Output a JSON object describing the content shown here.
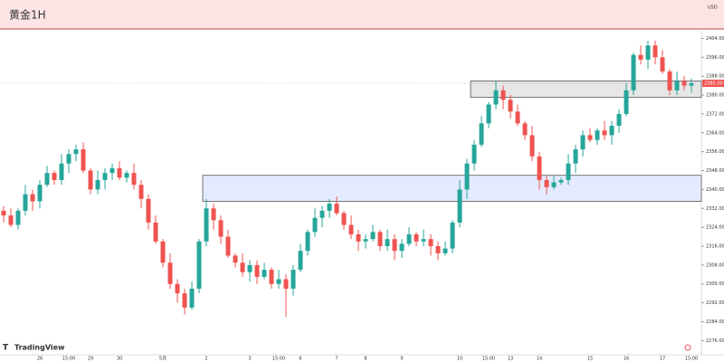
{
  "chart_data": {
    "type": "candlestick",
    "title": "黄金1H",
    "currency": "USD",
    "brand": "TradingView",
    "up_color": "#26a69a",
    "down_color": "#ef5350",
    "ylim": [
      2270,
      2408
    ],
    "yticks": [
      {
        "value": 2276,
        "label": "2276.00"
      },
      {
        "value": 2284,
        "label": "2284.00"
      },
      {
        "value": 2292,
        "label": "2292.00"
      },
      {
        "value": 2300,
        "label": "2300.00"
      },
      {
        "value": 2308,
        "label": "2308.00"
      },
      {
        "value": 2316,
        "label": "2316.00"
      },
      {
        "value": 2324,
        "label": "2324.00"
      },
      {
        "value": 2332,
        "label": "2332.00"
      },
      {
        "value": 2340,
        "label": "2340.00"
      },
      {
        "value": 2348,
        "label": "2348.00"
      },
      {
        "value": 2356,
        "label": "2356.00"
      },
      {
        "value": 2364,
        "label": "2364.00"
      },
      {
        "value": 2372,
        "label": "2372.00"
      },
      {
        "value": 2380,
        "label": "2380.00"
      },
      {
        "value": 2388,
        "label": "2388.00"
      },
      {
        "value": 2396,
        "label": "2396.00"
      },
      {
        "value": 2404,
        "label": "2404.00"
      }
    ],
    "last_price": {
      "value": 2385,
      "label": "2385.00"
    },
    "zones": [
      {
        "top": 2386,
        "bottom": 2379,
        "start": 65,
        "color": "#e0e0e0"
      },
      {
        "top": 2346,
        "bottom": 2335,
        "start": 28,
        "color": "#dde6ff"
      }
    ],
    "categories": [
      null,
      null,
      null,
      null,
      null,
      "26",
      null,
      null,
      null,
      "15:00",
      null,
      null,
      "29",
      null,
      null,
      null,
      "30",
      null,
      null,
      null,
      null,
      null,
      "5月",
      null,
      null,
      null,
      null,
      null,
      "2",
      null,
      null,
      null,
      null,
      null,
      "3",
      null,
      null,
      null,
      "15:00",
      null,
      null,
      "6",
      null,
      null,
      null,
      null,
      "7",
      null,
      null,
      null,
      "8",
      null,
      null,
      null,
      null,
      "9",
      null,
      null,
      null,
      null,
      null,
      null,
      null,
      "10",
      null,
      null,
      null,
      "15:00",
      null,
      null,
      "13",
      null,
      null,
      null,
      "14",
      null,
      null,
      null,
      null,
      null,
      null,
      "15",
      null,
      null,
      null,
      null,
      "16",
      null,
      null,
      null,
      null,
      "17",
      null,
      null,
      null,
      "15:00"
    ],
    "candles": [
      [
        2331,
        2333,
        2326,
        2329
      ],
      [
        2329,
        2332,
        2324,
        2325
      ],
      [
        2325,
        2332,
        2323,
        2331
      ],
      [
        2331,
        2342,
        2329,
        2338
      ],
      [
        2338,
        2340,
        2331,
        2335
      ],
      [
        2335,
        2344,
        2332,
        2342
      ],
      [
        2342,
        2350,
        2341,
        2347
      ],
      [
        2347,
        2348,
        2342,
        2344
      ],
      [
        2344,
        2355,
        2342,
        2351
      ],
      [
        2351,
        2357,
        2347,
        2355
      ],
      [
        2355,
        2359,
        2352,
        2357
      ],
      [
        2357,
        2360,
        2347,
        2348
      ],
      [
        2348,
        2349,
        2338,
        2340
      ],
      [
        2340,
        2348,
        2338,
        2344
      ],
      [
        2344,
        2349,
        2340,
        2347
      ],
      [
        2347,
        2351,
        2344,
        2349
      ],
      [
        2349,
        2352,
        2344,
        2345
      ],
      [
        2345,
        2348,
        2343,
        2347
      ],
      [
        2347,
        2351,
        2340,
        2342
      ],
      [
        2342,
        2344,
        2332,
        2336
      ],
      [
        2336,
        2338,
        2323,
        2326
      ],
      [
        2326,
        2329,
        2317,
        2318
      ],
      [
        2318,
        2319,
        2307,
        2309
      ],
      [
        2309,
        2313,
        2298,
        2300
      ],
      [
        2300,
        2302,
        2292,
        2296
      ],
      [
        2296,
        2298,
        2287,
        2290
      ],
      [
        2290,
        2301,
        2289,
        2298
      ],
      [
        2298,
        2319,
        2296,
        2318
      ],
      [
        2318,
        2336,
        2316,
        2332
      ],
      [
        2332,
        2334,
        2323,
        2327
      ],
      [
        2327,
        2329,
        2317,
        2320
      ],
      [
        2320,
        2323,
        2311,
        2312
      ],
      [
        2312,
        2313,
        2307,
        2309
      ],
      [
        2309,
        2313,
        2303,
        2305
      ],
      [
        2305,
        2310,
        2301,
        2308
      ],
      [
        2308,
        2310,
        2300,
        2303
      ],
      [
        2303,
        2309,
        2302,
        2306
      ],
      [
        2306,
        2307,
        2298,
        2300
      ],
      [
        2300,
        2306,
        2298,
        2302
      ],
      [
        2302,
        2304,
        2286,
        2298
      ],
      [
        2298,
        2308,
        2295,
        2306
      ],
      [
        2306,
        2317,
        2305,
        2314
      ],
      [
        2314,
        2323,
        2312,
        2322
      ],
      [
        2322,
        2332,
        2320,
        2328
      ],
      [
        2328,
        2333,
        2324,
        2331
      ],
      [
        2331,
        2336,
        2328,
        2334
      ],
      [
        2334,
        2337,
        2329,
        2330
      ],
      [
        2330,
        2331,
        2323,
        2325
      ],
      [
        2325,
        2329,
        2319,
        2321
      ],
      [
        2321,
        2323,
        2314,
        2318
      ],
      [
        2318,
        2321,
        2315,
        2319
      ],
      [
        2319,
        2325,
        2318,
        2322
      ],
      [
        2322,
        2323,
        2314,
        2316
      ],
      [
        2316,
        2323,
        2314,
        2319
      ],
      [
        2319,
        2321,
        2310,
        2314
      ],
      [
        2314,
        2319,
        2311,
        2317
      ],
      [
        2317,
        2324,
        2316,
        2321
      ],
      [
        2321,
        2322,
        2316,
        2318
      ],
      [
        2318,
        2323,
        2316,
        2319
      ],
      [
        2319,
        2321,
        2312,
        2316
      ],
      [
        2316,
        2318,
        2310,
        2313
      ],
      [
        2313,
        2318,
        2312,
        2315
      ],
      [
        2315,
        2327,
        2313,
        2326
      ],
      [
        2326,
        2344,
        2324,
        2340
      ],
      [
        2340,
        2353,
        2336,
        2351
      ],
      [
        2351,
        2361,
        2348,
        2359
      ],
      [
        2359,
        2371,
        2358,
        2368
      ],
      [
        2368,
        2377,
        2366,
        2376
      ],
      [
        2376,
        2386,
        2374,
        2382
      ],
      [
        2382,
        2384,
        2374,
        2378
      ],
      [
        2378,
        2380,
        2370,
        2373
      ],
      [
        2373,
        2376,
        2367,
        2368
      ],
      [
        2368,
        2369,
        2361,
        2363
      ],
      [
        2363,
        2367,
        2352,
        2354
      ],
      [
        2354,
        2356,
        2340,
        2344
      ],
      [
        2344,
        2346,
        2338,
        2341
      ],
      [
        2341,
        2346,
        2340,
        2343
      ],
      [
        2343,
        2345,
        2342,
        2344
      ],
      [
        2344,
        2355,
        2342,
        2351
      ],
      [
        2351,
        2359,
        2347,
        2357
      ],
      [
        2357,
        2365,
        2354,
        2363
      ],
      [
        2363,
        2366,
        2360,
        2361
      ],
      [
        2361,
        2366,
        2359,
        2365
      ],
      [
        2365,
        2369,
        2361,
        2363
      ],
      [
        2363,
        2369,
        2359,
        2367
      ],
      [
        2367,
        2374,
        2364,
        2372
      ],
      [
        2372,
        2385,
        2371,
        2382
      ],
      [
        2382,
        2398,
        2380,
        2397
      ],
      [
        2397,
        2401,
        2393,
        2395
      ],
      [
        2395,
        2403,
        2391,
        2401
      ],
      [
        2401,
        2403,
        2393,
        2396
      ],
      [
        2396,
        2399,
        2389,
        2390
      ],
      [
        2390,
        2391,
        2380,
        2382
      ],
      [
        2382,
        2390,
        2380,
        2386
      ],
      [
        2386,
        2388,
        2382,
        2384
      ],
      [
        2384,
        2387,
        2381,
        2385
      ]
    ]
  }
}
